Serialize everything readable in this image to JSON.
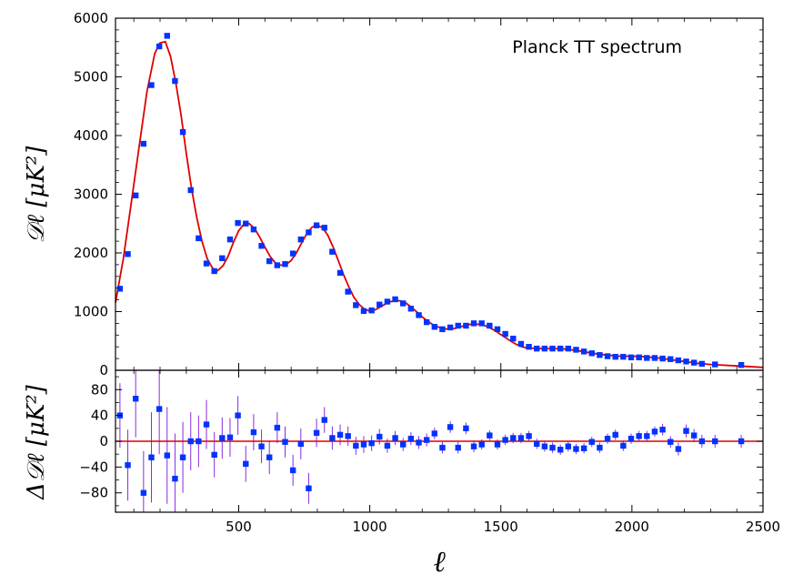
{
  "chart_data": [
    {
      "type": "scatter",
      "annotation": "Planck TT spectrum",
      "ylabel": "𝒟ℓ [μK²]",
      "xlabel": "ℓ",
      "xlim": [
        30,
        2500
      ],
      "ylim": [
        0,
        6000
      ],
      "x_ticks": [
        500,
        1000,
        1500,
        2000,
        2500
      ],
      "y_ticks": [
        0,
        1000,
        2000,
        3000,
        4000,
        5000,
        6000
      ],
      "grid": false,
      "colors": {
        "points": "#0033ff",
        "model": "#e00000",
        "errorbars": "#8a2be2"
      },
      "model_curve": {
        "name": "",
        "x": [
          30,
          60,
          90,
          120,
          150,
          180,
          200,
          220,
          240,
          260,
          280,
          300,
          320,
          340,
          360,
          380,
          400,
          420,
          440,
          460,
          480,
          500,
          520,
          540,
          560,
          580,
          600,
          620,
          640,
          660,
          680,
          700,
          720,
          740,
          760,
          780,
          800,
          820,
          840,
          860,
          880,
          900,
          920,
          940,
          960,
          980,
          1000,
          1020,
          1040,
          1060,
          1080,
          1100,
          1120,
          1140,
          1160,
          1180,
          1200,
          1220,
          1240,
          1260,
          1280,
          1300,
          1320,
          1340,
          1360,
          1380,
          1400,
          1420,
          1440,
          1460,
          1480,
          1500,
          1520,
          1540,
          1560,
          1580,
          1600,
          1650,
          1700,
          1750,
          1800,
          1850,
          1900,
          1950,
          2000,
          2050,
          2100,
          2150,
          2200,
          2250,
          2300,
          2400,
          2500
        ],
        "y": [
          1150,
          1900,
          2850,
          3800,
          4750,
          5400,
          5580,
          5600,
          5350,
          4900,
          4350,
          3700,
          3100,
          2600,
          2200,
          1900,
          1740,
          1700,
          1780,
          1950,
          2180,
          2380,
          2490,
          2500,
          2420,
          2270,
          2100,
          1940,
          1830,
          1790,
          1800,
          1870,
          2000,
          2170,
          2330,
          2440,
          2470,
          2430,
          2300,
          2100,
          1870,
          1630,
          1420,
          1240,
          1120,
          1040,
          1010,
          1030,
          1080,
          1130,
          1170,
          1190,
          1180,
          1140,
          1070,
          990,
          910,
          840,
          780,
          740,
          710,
          700,
          710,
          730,
          760,
          780,
          790,
          780,
          760,
          720,
          670,
          610,
          550,
          490,
          440,
          400,
          380,
          370,
          370,
          360,
          330,
          290,
          260,
          240,
          240,
          230,
          210,
          180,
          150,
          120,
          100,
          75,
          50
        ]
      },
      "points": {
        "x": [
          47,
          77,
          107,
          137,
          167,
          197,
          227,
          257,
          287,
          317,
          347,
          377,
          407,
          437,
          467,
          497,
          527,
          557,
          587,
          617,
          647,
          677,
          707,
          737,
          767,
          797,
          827,
          857,
          887,
          917,
          947,
          977,
          1007,
          1037,
          1067,
          1097,
          1127,
          1157,
          1187,
          1217,
          1247,
          1277,
          1307,
          1337,
          1367,
          1397,
          1427,
          1457,
          1487,
          1517,
          1547,
          1577,
          1607,
          1637,
          1667,
          1697,
          1727,
          1757,
          1787,
          1817,
          1847,
          1877,
          1907,
          1937,
          1967,
          1997,
          2027,
          2057,
          2087,
          2117,
          2147,
          2177,
          2207,
          2237,
          2267,
          2317,
          2417
        ],
        "y": [
          1390,
          1980,
          2980,
          3860,
          4860,
          5520,
          5700,
          4930,
          4060,
          3070,
          2250,
          1820,
          1690,
          1910,
          2230,
          2510,
          2500,
          2400,
          2120,
          1860,
          1790,
          1810,
          1990,
          2230,
          2350,
          2470,
          2430,
          2020,
          1660,
          1340,
          1110,
          1010,
          1020,
          1120,
          1170,
          1210,
          1140,
          1050,
          940,
          820,
          740,
          700,
          730,
          760,
          760,
          800,
          800,
          760,
          700,
          620,
          540,
          450,
          400,
          370,
          370,
          370,
          370,
          370,
          350,
          320,
          290,
          260,
          240,
          230,
          230,
          220,
          220,
          210,
          210,
          200,
          190,
          170,
          150,
          130,
          110,
          100,
          90
        ]
      }
    },
    {
      "type": "scatter",
      "ylabel": "Δ𝒟ℓ [μK²]",
      "xlim": [
        30,
        2500
      ],
      "ylim": [
        -110,
        110
      ],
      "y_ticks": [
        -80,
        -40,
        0,
        40,
        80
      ],
      "reference_line": 0,
      "residuals": {
        "x": [
          47,
          77,
          107,
          137,
          167,
          197,
          227,
          257,
          287,
          317,
          347,
          377,
          407,
          437,
          467,
          497,
          527,
          557,
          587,
          617,
          647,
          677,
          707,
          737,
          767,
          797,
          827,
          857,
          887,
          917,
          947,
          977,
          1007,
          1037,
          1067,
          1097,
          1127,
          1157,
          1187,
          1217,
          1247,
          1277,
          1307,
          1337,
          1367,
          1397,
          1427,
          1457,
          1487,
          1517,
          1547,
          1577,
          1607,
          1637,
          1667,
          1697,
          1727,
          1757,
          1787,
          1817,
          1847,
          1877,
          1907,
          1937,
          1967,
          1997,
          2027,
          2057,
          2087,
          2117,
          2147,
          2177,
          2207,
          2237,
          2267,
          2317,
          2417
        ],
        "y": [
          40,
          -37,
          66,
          -80,
          -25,
          50,
          -22,
          -58,
          -25,
          0,
          0,
          26,
          -21,
          5,
          6,
          40,
          -35,
          14,
          -8,
          -25,
          21,
          -1,
          -45,
          -4,
          -73,
          13,
          33,
          5,
          10,
          8,
          -7,
          -5,
          -3,
          7,
          -7,
          5,
          -5,
          4,
          -2,
          2,
          12,
          -10,
          22,
          -10,
          20,
          -8,
          -5,
          9,
          -5,
          2,
          5,
          5,
          8,
          -4,
          -8,
          -10,
          -13,
          -8,
          -12,
          -11,
          -1,
          -10,
          4,
          10,
          -7,
          4,
          8,
          8,
          15,
          18,
          -1,
          -12,
          16,
          9,
          0,
          0,
          0
        ],
        "err": [
          50,
          55,
          60,
          65,
          70,
          70,
          75,
          70,
          55,
          45,
          40,
          38,
          35,
          32,
          30,
          30,
          28,
          28,
          26,
          26,
          24,
          24,
          24,
          24,
          24,
          22,
          20,
          18,
          16,
          15,
          14,
          13,
          12,
          12,
          11,
          11,
          10,
          10,
          10,
          10,
          9,
          9,
          9,
          9,
          9,
          9,
          8,
          8,
          8,
          8,
          8,
          8,
          8,
          8,
          8,
          8,
          8,
          8,
          8,
          8,
          8,
          8,
          8,
          8,
          8,
          8,
          8,
          8,
          8,
          9,
          9,
          10,
          10,
          10,
          10,
          10,
          10
        ]
      }
    }
  ]
}
